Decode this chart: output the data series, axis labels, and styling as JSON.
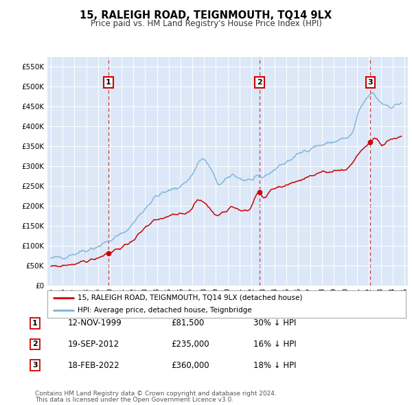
{
  "title": "15, RALEIGH ROAD, TEIGNMOUTH, TQ14 9LX",
  "subtitle": "Price paid vs. HM Land Registry's House Price Index (HPI)",
  "ytick_values": [
    0,
    50000,
    100000,
    150000,
    200000,
    250000,
    300000,
    350000,
    400000,
    450000,
    500000,
    550000
  ],
  "ylim": [
    0,
    575000
  ],
  "xlim_start": 1994.7,
  "xlim_end": 2025.3,
  "plot_bg_color": "#dce8f8",
  "sale_color": "#cc0000",
  "hpi_color": "#7ab0d8",
  "sale_label": "15, RALEIGH ROAD, TEIGNMOUTH, TQ14 9LX (detached house)",
  "hpi_label": "HPI: Average price, detached house, Teignbridge",
  "transactions": [
    {
      "date": 1999.87,
      "price": 81500,
      "label": "1"
    },
    {
      "date": 2012.72,
      "price": 235000,
      "label": "2"
    },
    {
      "date": 2022.12,
      "price": 360000,
      "label": "3"
    }
  ],
  "footer_line1": "Contains HM Land Registry data © Crown copyright and database right 2024.",
  "footer_line2": "This data is licensed under the Open Government Licence v3.0.",
  "table_rows": [
    {
      "num": "1",
      "date": "12-NOV-1999",
      "price": "£81,500",
      "note": "30% ↓ HPI"
    },
    {
      "num": "2",
      "date": "19-SEP-2012",
      "price": "£235,000",
      "note": "16% ↓ HPI"
    },
    {
      "num": "3",
      "date": "18-FEB-2022",
      "price": "£360,000",
      "note": "18% ↓ HPI"
    }
  ],
  "hpi_data_x": [
    1995.0,
    1995.083,
    1995.167,
    1995.25,
    1995.333,
    1995.417,
    1995.5,
    1995.583,
    1995.667,
    1995.75,
    1995.833,
    1995.917,
    1996.0,
    1996.083,
    1996.167,
    1996.25,
    1996.333,
    1996.417,
    1996.5,
    1996.583,
    1996.667,
    1996.75,
    1996.833,
    1996.917,
    1997.0,
    1997.083,
    1997.167,
    1997.25,
    1997.333,
    1997.417,
    1997.5,
    1997.583,
    1997.667,
    1997.75,
    1997.833,
    1997.917,
    1998.0,
    1998.083,
    1998.167,
    1998.25,
    1998.333,
    1998.417,
    1998.5,
    1998.583,
    1998.667,
    1998.75,
    1998.833,
    1998.917,
    1999.0,
    1999.083,
    1999.167,
    1999.25,
    1999.333,
    1999.417,
    1999.5,
    1999.583,
    1999.667,
    1999.75,
    1999.833,
    1999.917,
    2000.0,
    2000.083,
    2000.167,
    2000.25,
    2000.333,
    2000.417,
    2000.5,
    2000.583,
    2000.667,
    2000.75,
    2000.833,
    2000.917,
    2001.0,
    2001.083,
    2001.167,
    2001.25,
    2001.333,
    2001.417,
    2001.5,
    2001.583,
    2001.667,
    2001.75,
    2001.833,
    2001.917,
    2002.0,
    2002.083,
    2002.167,
    2002.25,
    2002.333,
    2002.417,
    2002.5,
    2002.583,
    2002.667,
    2002.75,
    2002.833,
    2002.917,
    2003.0,
    2003.083,
    2003.167,
    2003.25,
    2003.333,
    2003.417,
    2003.5,
    2003.583,
    2003.667,
    2003.75,
    2003.833,
    2003.917,
    2004.0,
    2004.083,
    2004.167,
    2004.25,
    2004.333,
    2004.417,
    2004.5,
    2004.583,
    2004.667,
    2004.75,
    2004.833,
    2004.917,
    2005.0,
    2005.083,
    2005.167,
    2005.25,
    2005.333,
    2005.417,
    2005.5,
    2005.583,
    2005.667,
    2005.75,
    2005.833,
    2005.917,
    2006.0,
    2006.083,
    2006.167,
    2006.25,
    2006.333,
    2006.417,
    2006.5,
    2006.583,
    2006.667,
    2006.75,
    2006.833,
    2006.917,
    2007.0,
    2007.083,
    2007.167,
    2007.25,
    2007.333,
    2007.417,
    2007.5,
    2007.583,
    2007.667,
    2007.75,
    2007.833,
    2007.917,
    2008.0,
    2008.083,
    2008.167,
    2008.25,
    2008.333,
    2008.417,
    2008.5,
    2008.583,
    2008.667,
    2008.75,
    2008.833,
    2008.917,
    2009.0,
    2009.083,
    2009.167,
    2009.25,
    2009.333,
    2009.417,
    2009.5,
    2009.583,
    2009.667,
    2009.75,
    2009.833,
    2009.917,
    2010.0,
    2010.083,
    2010.167,
    2010.25,
    2010.333,
    2010.417,
    2010.5,
    2010.583,
    2010.667,
    2010.75,
    2010.833,
    2010.917,
    2011.0,
    2011.083,
    2011.167,
    2011.25,
    2011.333,
    2011.417,
    2011.5,
    2011.583,
    2011.667,
    2011.75,
    2011.833,
    2011.917,
    2012.0,
    2012.083,
    2012.167,
    2012.25,
    2012.333,
    2012.417,
    2012.5,
    2012.583,
    2012.667,
    2012.75,
    2012.833,
    2012.917,
    2013.0,
    2013.083,
    2013.167,
    2013.25,
    2013.333,
    2013.417,
    2013.5,
    2013.583,
    2013.667,
    2013.75,
    2013.833,
    2013.917,
    2014.0,
    2014.083,
    2014.167,
    2014.25,
    2014.333,
    2014.417,
    2014.5,
    2014.583,
    2014.667,
    2014.75,
    2014.833,
    2014.917,
    2015.0,
    2015.083,
    2015.167,
    2015.25,
    2015.333,
    2015.417,
    2015.5,
    2015.583,
    2015.667,
    2015.75,
    2015.833,
    2015.917,
    2016.0,
    2016.083,
    2016.167,
    2016.25,
    2016.333,
    2016.417,
    2016.5,
    2016.583,
    2016.667,
    2016.75,
    2016.833,
    2016.917,
    2017.0,
    2017.083,
    2017.167,
    2017.25,
    2017.333,
    2017.417,
    2017.5,
    2017.583,
    2017.667,
    2017.75,
    2017.833,
    2017.917,
    2018.0,
    2018.083,
    2018.167,
    2018.25,
    2018.333,
    2018.417,
    2018.5,
    2018.583,
    2018.667,
    2018.75,
    2018.833,
    2018.917,
    2019.0,
    2019.083,
    2019.167,
    2019.25,
    2019.333,
    2019.417,
    2019.5,
    2019.583,
    2019.667,
    2019.75,
    2019.833,
    2019.917,
    2020.0,
    2020.083,
    2020.167,
    2020.25,
    2020.333,
    2020.417,
    2020.5,
    2020.583,
    2020.667,
    2020.75,
    2020.833,
    2020.917,
    2021.0,
    2021.083,
    2021.167,
    2021.25,
    2021.333,
    2021.417,
    2021.5,
    2021.583,
    2021.667,
    2021.75,
    2021.833,
    2021.917,
    2022.0,
    2022.083,
    2022.167,
    2022.25,
    2022.333,
    2022.417,
    2022.5,
    2022.583,
    2022.667,
    2022.75,
    2022.833,
    2022.917,
    2023.0,
    2023.083,
    2023.167,
    2023.25,
    2023.333,
    2023.417,
    2023.5,
    2023.583,
    2023.667,
    2023.75,
    2023.833,
    2023.917,
    2024.0,
    2024.083,
    2024.167,
    2024.25,
    2024.333,
    2024.417,
    2024.5,
    2024.583,
    2024.667,
    2024.75
  ],
  "sale_data_x": [
    1995.0,
    1995.083,
    1995.167,
    1995.25,
    1995.333,
    1995.417,
    1995.5,
    1995.583,
    1995.667,
    1995.75,
    1995.833,
    1995.917,
    1996.0,
    1996.083,
    1996.167,
    1996.25,
    1996.333,
    1996.417,
    1996.5,
    1996.583,
    1996.667,
    1996.75,
    1996.833,
    1996.917,
    1997.0,
    1997.083,
    1997.167,
    1997.25,
    1997.333,
    1997.417,
    1997.5,
    1997.583,
    1997.667,
    1997.75,
    1997.833,
    1997.917,
    1998.0,
    1998.083,
    1998.167,
    1998.25,
    1998.333,
    1998.417,
    1998.5,
    1998.583,
    1998.667,
    1998.75,
    1998.833,
    1998.917,
    1999.0,
    1999.083,
    1999.167,
    1999.25,
    1999.333,
    1999.417,
    1999.5,
    1999.583,
    1999.667,
    1999.75,
    1999.833,
    1999.917,
    2000.0,
    2000.083,
    2000.167,
    2000.25,
    2000.333,
    2000.417,
    2000.5,
    2000.583,
    2000.667,
    2000.75,
    2000.833,
    2000.917,
    2001.0,
    2001.083,
    2001.167,
    2001.25,
    2001.333,
    2001.417,
    2001.5,
    2001.583,
    2001.667,
    2001.75,
    2001.833,
    2001.917,
    2002.0,
    2002.083,
    2002.167,
    2002.25,
    2002.333,
    2002.417,
    2002.5,
    2002.583,
    2002.667,
    2002.75,
    2002.833,
    2002.917,
    2003.0,
    2003.083,
    2003.167,
    2003.25,
    2003.333,
    2003.417,
    2003.5,
    2003.583,
    2003.667,
    2003.75,
    2003.833,
    2003.917,
    2004.0,
    2004.083,
    2004.167,
    2004.25,
    2004.333,
    2004.417,
    2004.5,
    2004.583,
    2004.667,
    2004.75,
    2004.833,
    2004.917,
    2005.0,
    2005.083,
    2005.167,
    2005.25,
    2005.333,
    2005.417,
    2005.5,
    2005.583,
    2005.667,
    2005.75,
    2005.833,
    2005.917,
    2006.0,
    2006.083,
    2006.167,
    2006.25,
    2006.333,
    2006.417,
    2006.5,
    2006.583,
    2006.667,
    2006.75,
    2006.833,
    2006.917,
    2007.0,
    2007.083,
    2007.167,
    2007.25,
    2007.333,
    2007.417,
    2007.5,
    2007.583,
    2007.667,
    2007.75,
    2007.833,
    2007.917,
    2008.0,
    2008.083,
    2008.167,
    2008.25,
    2008.333,
    2008.417,
    2008.5,
    2008.583,
    2008.667,
    2008.75,
    2008.833,
    2008.917,
    2009.0,
    2009.083,
    2009.167,
    2009.25,
    2009.333,
    2009.417,
    2009.5,
    2009.583,
    2009.667,
    2009.75,
    2009.833,
    2009.917,
    2010.0,
    2010.083,
    2010.167,
    2010.25,
    2010.333,
    2010.417,
    2010.5,
    2010.583,
    2010.667,
    2010.75,
    2010.833,
    2010.917,
    2011.0,
    2011.083,
    2011.167,
    2011.25,
    2011.333,
    2011.417,
    2011.5,
    2011.583,
    2011.667,
    2011.75,
    2011.833,
    2011.917,
    2012.0,
    2012.083,
    2012.167,
    2012.25,
    2012.333,
    2012.417,
    2012.5,
    2012.583,
    2012.667,
    2012.75,
    2012.833,
    2012.917,
    2013.0,
    2013.083,
    2013.167,
    2013.25,
    2013.333,
    2013.417,
    2013.5,
    2013.583,
    2013.667,
    2013.75,
    2013.833,
    2013.917,
    2014.0,
    2014.083,
    2014.167,
    2014.25,
    2014.333,
    2014.417,
    2014.5,
    2014.583,
    2014.667,
    2014.75,
    2014.833,
    2014.917,
    2015.0,
    2015.083,
    2015.167,
    2015.25,
    2015.333,
    2015.417,
    2015.5,
    2015.583,
    2015.667,
    2015.75,
    2015.833,
    2015.917,
    2016.0,
    2016.083,
    2016.167,
    2016.25,
    2016.333,
    2016.417,
    2016.5,
    2016.583,
    2016.667,
    2016.75,
    2016.833,
    2016.917,
    2017.0,
    2017.083,
    2017.167,
    2017.25,
    2017.333,
    2017.417,
    2017.5,
    2017.583,
    2017.667,
    2017.75,
    2017.833,
    2017.917,
    2018.0,
    2018.083,
    2018.167,
    2018.25,
    2018.333,
    2018.417,
    2018.5,
    2018.583,
    2018.667,
    2018.75,
    2018.833,
    2018.917,
    2019.0,
    2019.083,
    2019.167,
    2019.25,
    2019.333,
    2019.417,
    2019.5,
    2019.583,
    2019.667,
    2019.75,
    2019.833,
    2019.917,
    2020.0,
    2020.083,
    2020.167,
    2020.25,
    2020.333,
    2020.417,
    2020.5,
    2020.583,
    2020.667,
    2020.75,
    2020.833,
    2020.917,
    2021.0,
    2021.083,
    2021.167,
    2021.25,
    2021.333,
    2021.417,
    2021.5,
    2021.583,
    2021.667,
    2021.75,
    2021.833,
    2021.917,
    2022.0,
    2022.083,
    2022.167,
    2022.25,
    2022.333,
    2022.417,
    2022.5,
    2022.583,
    2022.667,
    2022.75,
    2022.833,
    2022.917,
    2023.0,
    2023.083,
    2023.167,
    2023.25,
    2023.333,
    2023.417,
    2023.5,
    2023.583,
    2023.667,
    2023.75,
    2023.833,
    2023.917,
    2024.0,
    2024.083,
    2024.167,
    2024.25,
    2024.333,
    2024.417,
    2024.5,
    2024.583,
    2024.667,
    2024.75
  ]
}
